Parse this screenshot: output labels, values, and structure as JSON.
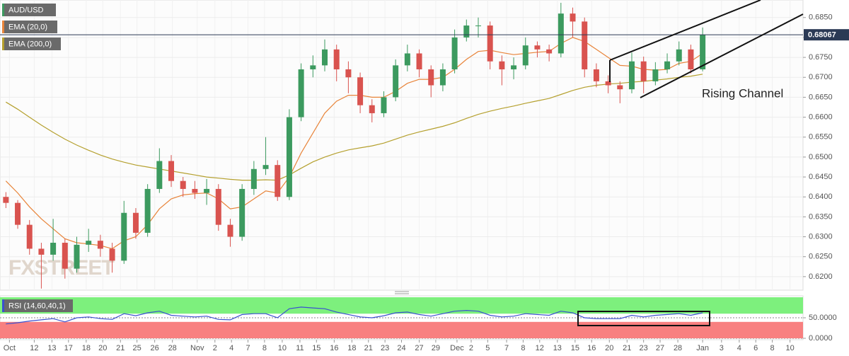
{
  "chart_data": [
    {
      "type": "candlestick",
      "title": "AUD/USD",
      "watermark": "FXSTREET",
      "annotation": "Rising Channel",
      "up_color": "#3c9a5f",
      "down_color": "#d9534f",
      "last_price": 0.68067,
      "open": [
        0.64,
        0.6385,
        0.633,
        0.627,
        0.6255,
        0.6285,
        0.622,
        0.628,
        0.629,
        0.627,
        0.624,
        0.636,
        0.631,
        0.642,
        0.649,
        0.644,
        0.642,
        0.641,
        0.642,
        0.633,
        0.63,
        0.642,
        0.647,
        0.648,
        0.64,
        0.66,
        0.672,
        0.673,
        0.677,
        0.672,
        0.67,
        0.663,
        0.661,
        0.665,
        0.673,
        0.676,
        0.672,
        0.668,
        0.672,
        0.68,
        0.683,
        0.683,
        0.674,
        0.672,
        0.673,
        0.678,
        0.677,
        0.676,
        0.686,
        0.684,
        0.672,
        0.669,
        0.668,
        0.667,
        0.674,
        0.669,
        0.672,
        0.674,
        0.677,
        0.672
      ],
      "high": [
        0.6412,
        0.6392,
        0.6342,
        0.6285,
        0.6345,
        0.6295,
        0.63,
        0.632,
        0.6305,
        0.6285,
        0.639,
        0.6372,
        0.6432,
        0.6522,
        0.6505,
        0.645,
        0.644,
        0.6445,
        0.6432,
        0.6345,
        0.6432,
        0.649,
        0.655,
        0.6492,
        0.662,
        0.6735,
        0.6755,
        0.6795,
        0.6782,
        0.674,
        0.6712,
        0.6645,
        0.6665,
        0.6745,
        0.6782,
        0.677,
        0.673,
        0.6735,
        0.682,
        0.6845,
        0.685,
        0.684,
        0.6755,
        0.675,
        0.68,
        0.679,
        0.6782,
        0.6887,
        0.6875,
        0.685,
        0.6735,
        0.6705,
        0.669,
        0.6762,
        0.6752,
        0.6738,
        0.676,
        0.679,
        0.6782,
        0.6825
      ],
      "low": [
        0.6372,
        0.632,
        0.6255,
        0.617,
        0.624,
        0.6195,
        0.621,
        0.6262,
        0.625,
        0.621,
        0.6232,
        0.6295,
        0.63,
        0.641,
        0.6425,
        0.64,
        0.6395,
        0.638,
        0.6315,
        0.6275,
        0.629,
        0.6405,
        0.6455,
        0.639,
        0.6392,
        0.659,
        0.67,
        0.6715,
        0.669,
        0.666,
        0.661,
        0.6587,
        0.66,
        0.664,
        0.6715,
        0.67,
        0.665,
        0.6665,
        0.671,
        0.679,
        0.68,
        0.672,
        0.668,
        0.6695,
        0.672,
        0.675,
        0.674,
        0.675,
        0.68,
        0.67,
        0.6675,
        0.666,
        0.6635,
        0.666,
        0.666,
        0.668,
        0.671,
        0.673,
        0.671,
        0.6715
      ],
      "close": [
        0.6385,
        0.633,
        0.627,
        0.6255,
        0.6285,
        0.622,
        0.628,
        0.629,
        0.627,
        0.624,
        0.636,
        0.631,
        0.642,
        0.649,
        0.644,
        0.642,
        0.641,
        0.642,
        0.633,
        0.63,
        0.642,
        0.647,
        0.648,
        0.64,
        0.66,
        0.672,
        0.673,
        0.677,
        0.672,
        0.67,
        0.663,
        0.661,
        0.665,
        0.673,
        0.676,
        0.672,
        0.668,
        0.672,
        0.68,
        0.683,
        0.683,
        0.674,
        0.672,
        0.673,
        0.678,
        0.677,
        0.676,
        0.686,
        0.684,
        0.672,
        0.669,
        0.668,
        0.667,
        0.674,
        0.669,
        0.672,
        0.674,
        0.677,
        0.672,
        0.6807
      ],
      "series": [
        {
          "name": "EMA (20,0)",
          "color": "#e8843a",
          "values": [
            0.644,
            0.641,
            0.6375,
            0.6345,
            0.632,
            0.6295,
            0.6285,
            0.6282,
            0.6278,
            0.627,
            0.629,
            0.63,
            0.633,
            0.637,
            0.6395,
            0.6405,
            0.6408,
            0.641,
            0.6395,
            0.637,
            0.6375,
            0.6395,
            0.6415,
            0.641,
            0.645,
            0.651,
            0.656,
            0.661,
            0.664,
            0.6655,
            0.6655,
            0.665,
            0.665,
            0.6665,
            0.6685,
            0.6695,
            0.6695,
            0.67,
            0.672,
            0.6745,
            0.6765,
            0.6768,
            0.6762,
            0.6757,
            0.676,
            0.6763,
            0.6765,
            0.6785,
            0.68,
            0.679,
            0.677,
            0.675,
            0.673,
            0.6728,
            0.672,
            0.6718,
            0.672,
            0.6735,
            0.674,
            0.676
          ]
        },
        {
          "name": "EMA (200,0)",
          "color": "#b5a02e",
          "values": [
            0.6638,
            0.662,
            0.66,
            0.658,
            0.6562,
            0.6545,
            0.653,
            0.6517,
            0.6505,
            0.6495,
            0.6487,
            0.648,
            0.6475,
            0.647,
            0.6465,
            0.646,
            0.6455,
            0.645,
            0.6447,
            0.6444,
            0.6442,
            0.6442,
            0.6443,
            0.6442,
            0.6455,
            0.6472,
            0.6488,
            0.65,
            0.651,
            0.6518,
            0.6523,
            0.6528,
            0.6535,
            0.6545,
            0.6555,
            0.6563,
            0.657,
            0.6577,
            0.6586,
            0.6597,
            0.6607,
            0.6615,
            0.6622,
            0.6628,
            0.6635,
            0.6641,
            0.6647,
            0.6657,
            0.6667,
            0.6675,
            0.668,
            0.6683,
            0.6685,
            0.6688,
            0.669,
            0.6693,
            0.6696,
            0.67,
            0.6703,
            0.6708
          ]
        }
      ],
      "ylim": [
        0.6166,
        0.6894
      ],
      "yticks": [
        {
          "value": 0.62,
          "label": "0.6200"
        },
        {
          "value": 0.625,
          "label": "0.6250"
        },
        {
          "value": 0.63,
          "label": "0.6300"
        },
        {
          "value": 0.635,
          "label": "0.6350"
        },
        {
          "value": 0.64,
          "label": "0.6400"
        },
        {
          "value": 0.645,
          "label": "0.6450"
        },
        {
          "value": 0.65,
          "label": "0.6500"
        },
        {
          "value": 0.655,
          "label": "0.6550"
        },
        {
          "value": 0.66,
          "label": "0.6600"
        },
        {
          "value": 0.665,
          "label": "0.6650"
        },
        {
          "value": 0.67,
          "label": "0.6700"
        },
        {
          "value": 0.675,
          "label": "0.6750"
        },
        {
          "value": 0.68,
          "label": "0.6800"
        },
        {
          "value": 0.685,
          "label": "0.6850"
        }
      ],
      "xlim": [
        -0.5,
        67.5
      ],
      "xticks": [
        {
          "value": 0.3,
          "label": "Oct"
        },
        {
          "value": 2.4,
          "label": "12"
        },
        {
          "value": 3.9,
          "label": "13"
        },
        {
          "value": 5.3,
          "label": "17"
        },
        {
          "value": 6.8,
          "label": "18"
        },
        {
          "value": 8.2,
          "label": "20"
        },
        {
          "value": 9.7,
          "label": "21"
        },
        {
          "value": 11.1,
          "label": "25"
        },
        {
          "value": 12.6,
          "label": "26"
        },
        {
          "value": 14.1,
          "label": "28"
        },
        {
          "value": 16.2,
          "label": "Nov"
        },
        {
          "value": 17.7,
          "label": "2"
        },
        {
          "value": 19.1,
          "label": "4"
        },
        {
          "value": 20.5,
          "label": "7"
        },
        {
          "value": 21.9,
          "label": "8"
        },
        {
          "value": 23.4,
          "label": "10"
        },
        {
          "value": 24.9,
          "label": "11"
        },
        {
          "value": 26.3,
          "label": "15"
        },
        {
          "value": 27.8,
          "label": "16"
        },
        {
          "value": 29.3,
          "label": "18"
        },
        {
          "value": 30.7,
          "label": "21"
        },
        {
          "value": 32.1,
          "label": "23"
        },
        {
          "value": 33.5,
          "label": "24"
        },
        {
          "value": 35.0,
          "label": "27"
        },
        {
          "value": 36.4,
          "label": "29"
        },
        {
          "value": 38.2,
          "label": "Dec"
        },
        {
          "value": 39.4,
          "label": "2"
        },
        {
          "value": 40.8,
          "label": "5"
        },
        {
          "value": 42.4,
          "label": "7"
        },
        {
          "value": 43.8,
          "label": "8"
        },
        {
          "value": 45.2,
          "label": "12"
        },
        {
          "value": 46.7,
          "label": "13"
        },
        {
          "value": 48.2,
          "label": "15"
        },
        {
          "value": 49.6,
          "label": "16"
        },
        {
          "value": 51.1,
          "label": "20"
        },
        {
          "value": 52.6,
          "label": "21"
        },
        {
          "value": 54.0,
          "label": "23"
        },
        {
          "value": 55.4,
          "label": "27"
        },
        {
          "value": 56.9,
          "label": "28"
        },
        {
          "value": 59.0,
          "label": "Jan"
        },
        {
          "value": 60.6,
          "label": "3"
        },
        {
          "value": 62.1,
          "label": "4"
        },
        {
          "value": 63.5,
          "label": "6"
        },
        {
          "value": 64.9,
          "label": "8"
        },
        {
          "value": 66.4,
          "label": "10"
        }
      ]
    },
    {
      "type": "line",
      "upper_band": 60,
      "lower_band": 40,
      "upper_color": "#7df07d",
      "lower_color": "#f88080",
      "series": [
        {
          "name": "RSI (14,60,40,1)",
          "color": "#3a50d0",
          "values": [
            35,
            38,
            42,
            45,
            48,
            40,
            50,
            52,
            48,
            46,
            60,
            55,
            62,
            66,
            56,
            54,
            52,
            54,
            46,
            45,
            58,
            60,
            60,
            50,
            72,
            76,
            74,
            72,
            64,
            58,
            52,
            50,
            55,
            62,
            64,
            58,
            54,
            60,
            66,
            68,
            66,
            56,
            52,
            54,
            60,
            58,
            56,
            66,
            62,
            50,
            48,
            48,
            48,
            56,
            52,
            56,
            58,
            60,
            56,
            62
          ]
        }
      ],
      "ylim": [
        0,
        100
      ],
      "yticks": [
        {
          "value": 0,
          "label": "0.0000"
        },
        {
          "value": 50,
          "label": "50.0000"
        }
      ]
    }
  ]
}
